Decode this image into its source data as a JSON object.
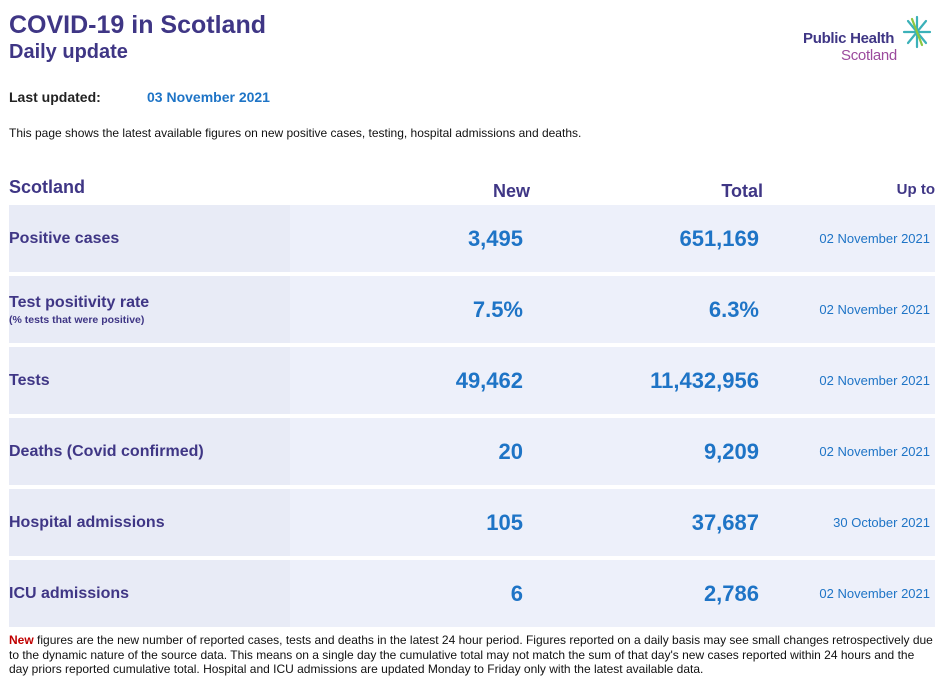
{
  "header": {
    "title": "COVID-19 in Scotland",
    "subtitle": "Daily update",
    "logo_line1": "Public Health",
    "logo_line2": "Scotland"
  },
  "updated": {
    "label": "Last updated:",
    "date": "03 November 2021"
  },
  "intro": "This page shows the latest available figures on new positive cases, testing, hospital admissions and deaths.",
  "table": {
    "headers": {
      "region": "Scotland",
      "new": "New",
      "total": "Total",
      "up_to": "Up to"
    },
    "rows": [
      {
        "label": "Positive cases",
        "sub": "",
        "new": "3,495",
        "total": "651,169",
        "date": "02 November 2021"
      },
      {
        "label": "Test positivity rate",
        "sub": "(% tests that were positive)",
        "new": "7.5%",
        "total": "6.3%",
        "date": "02 November 2021"
      },
      {
        "label": "Tests",
        "sub": "",
        "new": "49,462",
        "total": "11,432,956",
        "date": "02 November 2021"
      },
      {
        "label": "Deaths (Covid confirmed)",
        "sub": "",
        "new": "20",
        "total": "9,209",
        "date": "02 November 2021"
      },
      {
        "label": "Hospital admissions",
        "sub": "",
        "new": "105",
        "total": "37,687",
        "date": "30 October 2021"
      },
      {
        "label": "ICU admissions",
        "sub": "",
        "new": "6",
        "total": "2,786",
        "date": "02 November 2021"
      }
    ]
  },
  "footnote": {
    "keyword": "New",
    "text": " figures are the new number of reported cases, tests and deaths in the latest 24 hour period. Figures reported on a daily basis may see small changes retrospectively due to the dynamic nature of the source data. This means on a single day the cumulative total may not match the sum of that day's new cases reported within 24 hours and the day priors reported cumulative total. Hospital and ICU admissions are updated Monday to Friday only with the latest available data."
  },
  "colors": {
    "brand_purple": "#3f3685",
    "value_blue": "#1e74c6",
    "keyword_red": "#c00000",
    "row_bg": "#edf0fa"
  }
}
